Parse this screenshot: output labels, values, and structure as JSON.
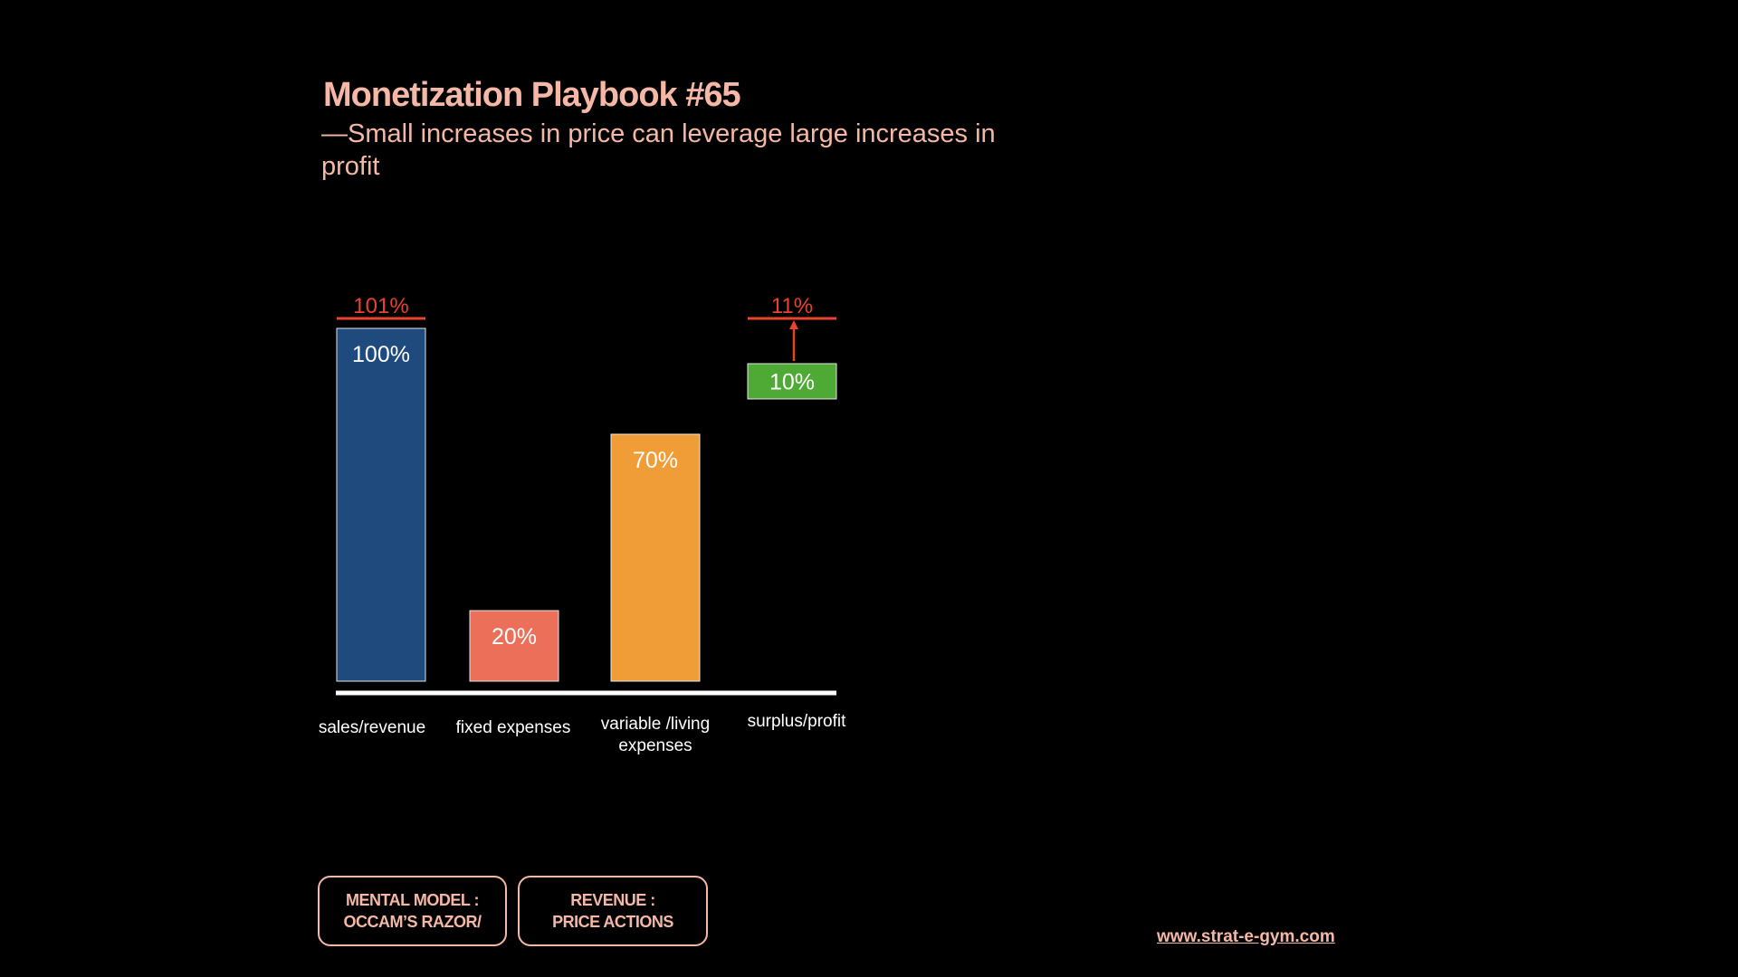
{
  "header": {
    "title": "Monetization Playbook #65",
    "subtitle": "—Small increases in price can leverage large increases in profit"
  },
  "chart_data": {
    "type": "bar",
    "categories": [
      "sales/revenue",
      "fixed expenses",
      "variable /living expenses",
      "surplus/profit"
    ],
    "values": [
      100,
      20,
      70,
      10
    ],
    "value_labels": [
      "100%",
      "20%",
      "70%",
      "10%"
    ],
    "bar_colors": [
      "#1f4a7d",
      "#ec6f5a",
      "#f09c37",
      "#4ea935"
    ],
    "floating": [
      false,
      false,
      false,
      true
    ],
    "floating_base": [
      0,
      0,
      0,
      80
    ],
    "targets": [
      {
        "category_index": 0,
        "value": 101,
        "label": "101%"
      },
      {
        "category_index": 3,
        "value": 11,
        "label": "11%",
        "arrow": true
      }
    ],
    "target_color": "#e8432c",
    "ylim": [
      0,
      100
    ],
    "grid": false,
    "title": "",
    "xlabel": "",
    "ylabel": ""
  },
  "tags": [
    {
      "label": "MENTAL MODEL :\nOCCAM’S RAZOR/"
    },
    {
      "label": "REVENUE :\nPRICE ACTIONS"
    }
  ],
  "footer": {
    "link": "www.strat-e-gym.com"
  },
  "colors": {
    "background": "#000000",
    "accent": "#f5b8a6",
    "highlight": "#e8432c"
  }
}
